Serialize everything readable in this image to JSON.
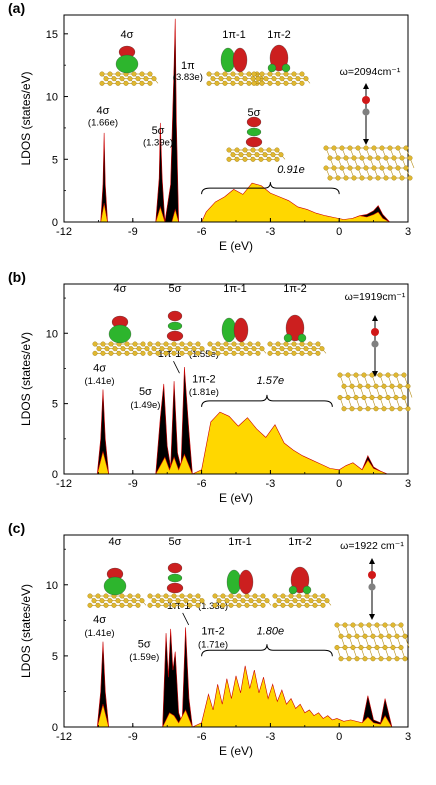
{
  "chart_data": [
    {
      "type": "area",
      "panel_label": "(a)",
      "xlabel": "E (eV)",
      "ylabel": "LDOS (states/eV)",
      "xlim": [
        -12,
        3
      ],
      "ylim": [
        0,
        16.5
      ],
      "xticks": [
        -12,
        -9,
        -6,
        -3,
        0,
        3
      ],
      "yticks": [
        0,
        5,
        10,
        15
      ],
      "grid": false,
      "series": [
        {
          "color": "#000000",
          "x": [
            -10.4,
            -10.3,
            -10.25,
            -10.2,
            -10.1,
            -8.0,
            -7.85,
            -7.8,
            -7.72,
            -7.6,
            -7.35,
            -7.2,
            -7.15,
            -7.1,
            -7.0,
            -6.0,
            -5.8,
            -5.4,
            -5.0,
            -4.6,
            -4.2,
            -3.8,
            -3.4,
            -3.0,
            -2.6,
            -2.2,
            -1.8,
            -1.4,
            -1.0,
            -0.6,
            -0.2,
            0.2,
            0.6,
            0.9,
            1.2,
            1.5,
            1.7,
            1.9,
            2.2
          ],
          "y": [
            0,
            3.0,
            7.1,
            3.0,
            0,
            0,
            3.5,
            7.9,
            3.5,
            0,
            3.0,
            12.5,
            16.2,
            8.0,
            0,
            0,
            0.2,
            0.35,
            0.4,
            0.45,
            0.5,
            0.45,
            0.4,
            0.35,
            0.3,
            0.3,
            0.35,
            0.3,
            0.25,
            0.2,
            0.15,
            0.1,
            0.3,
            0.5,
            0.6,
            0.9,
            1.3,
            0.6,
            0
          ]
        },
        {
          "color": "#ffd700",
          "x": [
            -10.4,
            -10.25,
            -10.1,
            -8.0,
            -7.8,
            -7.6,
            -7.3,
            -7.15,
            -7.0,
            -6.0,
            -5.8,
            -5.4,
            -5.0,
            -4.6,
            -4.2,
            -3.8,
            -3.4,
            -3.0,
            -2.6,
            -2.2,
            -1.8,
            -1.4,
            -1.0,
            -0.6,
            -0.2,
            0.2,
            0.6,
            0.9,
            1.2,
            1.5,
            1.7,
            1.9,
            2.2
          ],
          "y": [
            0,
            1.5,
            0,
            0,
            1.2,
            0,
            0,
            1.0,
            0,
            0,
            0.8,
            1.6,
            2.0,
            2.6,
            2.2,
            3.1,
            2.9,
            2.3,
            2.0,
            1.7,
            1.2,
            1.0,
            0.7,
            0.5,
            0.35,
            0.2,
            0.3,
            0.5,
            0.4,
            0.6,
            0.8,
            0.3,
            0
          ]
        }
      ],
      "annotations": [
        {
          "text": "4σ",
          "x": -10.3,
          "y": 8.6
        },
        {
          "text": "(1.66e)",
          "x": -10.3,
          "y": 7.7
        },
        {
          "text": "5σ",
          "x": -7.9,
          "y": 7.0
        },
        {
          "text": "(1.39e)",
          "x": -7.9,
          "y": 6.1
        },
        {
          "text": "1π",
          "x": -6.6,
          "y": 12.2
        },
        {
          "text": "(3.83e)",
          "x": -6.6,
          "y": 11.3
        },
        {
          "text": "0.91e",
          "x": -2.1,
          "y": 3.9
        }
      ],
      "orbital_labels": [
        "4σ",
        "1π-1",
        "1π-2",
        "5σ"
      ],
      "frequency": "ω=2094cm⁻¹",
      "brace": [
        -6.0,
        0.0,
        2.7
      ]
    },
    {
      "type": "area",
      "panel_label": "(b)",
      "xlabel": "E (eV)",
      "ylabel": "LDOS (states/eV)",
      "xlim": [
        -12,
        3
      ],
      "ylim": [
        0,
        13.5
      ],
      "xticks": [
        -12,
        -9,
        -6,
        -3,
        0,
        3
      ],
      "yticks": [
        0,
        5,
        10
      ],
      "grid": false,
      "series": [
        {
          "color": "#000000",
          "x": [
            -10.55,
            -10.4,
            -10.3,
            -10.2,
            -10.05,
            -8.0,
            -7.8,
            -7.65,
            -7.5,
            -7.35,
            -7.2,
            -7.05,
            -6.9,
            -6.75,
            -6.55,
            -6.4,
            -6.0,
            -5.5,
            -5.0,
            -4.5,
            -4.0,
            -3.5,
            -3.0,
            -2.5,
            -2.0,
            -1.5,
            -1.0,
            -0.5,
            0,
            0.3,
            0.6,
            1.0,
            1.25,
            1.5,
            1.8,
            2.1
          ],
          "y": [
            0,
            2.5,
            6.0,
            2.5,
            0,
            0,
            4.0,
            6.4,
            2.0,
            0.5,
            6.6,
            1.5,
            0.5,
            7.6,
            3.0,
            0,
            0.1,
            0.5,
            0.6,
            0.7,
            0.5,
            0.6,
            0.5,
            0.4,
            0.3,
            0.3,
            0.2,
            0.15,
            0.15,
            0.4,
            0.6,
            0.3,
            1.3,
            0.5,
            0.2,
            0
          ]
        },
        {
          "color": "#ffd700",
          "x": [
            -10.55,
            -10.3,
            -10.05,
            -8.0,
            -7.6,
            -7.4,
            -7.2,
            -7.0,
            -6.75,
            -6.4,
            -6.0,
            -5.6,
            -5.2,
            -4.8,
            -4.4,
            -4.0,
            -3.6,
            -3.2,
            -2.8,
            -2.4,
            -2.0,
            -1.6,
            -1.2,
            -0.8,
            -0.4,
            0,
            0.3,
            0.6,
            1.0,
            1.25,
            1.5,
            1.8,
            2.1
          ],
          "y": [
            0,
            1.6,
            0,
            0,
            1.2,
            0.3,
            1.2,
            0.3,
            1.4,
            0,
            0.3,
            3.7,
            4.4,
            4.1,
            3.4,
            4.0,
            3.2,
            2.6,
            3.5,
            2.2,
            1.7,
            1.3,
            1.0,
            0.7,
            0.4,
            0.3,
            0.6,
            0.8,
            0.3,
            1.0,
            0.4,
            0.2,
            0
          ]
        }
      ],
      "annotations": [
        {
          "text": "4σ",
          "x": -10.45,
          "y": 7.3
        },
        {
          "text": "(1.41e)",
          "x": -10.45,
          "y": 6.4
        },
        {
          "text": "5σ",
          "x": -8.45,
          "y": 5.6
        },
        {
          "text": "(1.49e)",
          "x": -8.45,
          "y": 4.7
        },
        {
          "text": "1π-1",
          "x": -7.4,
          "y": 8.3
        },
        {
          "text": "(1.55e)",
          "x": -5.9,
          "y": 8.3
        },
        {
          "text": "1π-2",
          "x": -5.9,
          "y": 6.5
        },
        {
          "text": "(1.81e)",
          "x": -5.9,
          "y": 5.6
        },
        {
          "text": "1.57e",
          "x": -3.0,
          "y": 6.4
        }
      ],
      "orbital_labels": [
        "4σ",
        "5σ",
        "1π-1",
        "1π-2"
      ],
      "frequency": "ω=1919cm⁻¹",
      "brace": [
        -6.0,
        -0.3,
        5.2
      ]
    },
    {
      "type": "area",
      "panel_label": "(c)",
      "xlabel": "E (eV)",
      "ylabel": "LDOS (states/eV)",
      "xlim": [
        -12,
        3
      ],
      "ylim": [
        0,
        13.5
      ],
      "xticks": [
        -12,
        -9,
        -6,
        -3,
        0,
        3
      ],
      "yticks": [
        0,
        5,
        10
      ],
      "grid": false,
      "series": [
        {
          "color": "#000000",
          "x": [
            -10.55,
            -10.4,
            -10.3,
            -10.2,
            -10.05,
            -7.7,
            -7.55,
            -7.45,
            -7.35,
            -7.25,
            -7.15,
            -7.0,
            -6.85,
            -6.7,
            -6.55,
            -6.4,
            -6.0,
            -5.5,
            -5.0,
            -4.5,
            -4.0,
            -3.5,
            -3.0,
            -2.5,
            -2.0,
            -1.5,
            -1.0,
            -0.5,
            0,
            0.5,
            1.0,
            1.25,
            1.5,
            1.8,
            2.0,
            2.3
          ],
          "y": [
            0,
            2.5,
            6.0,
            2.5,
            0,
            0,
            6.6,
            3.5,
            6.9,
            4.0,
            5.3,
            1.0,
            0.3,
            7.0,
            2.0,
            0,
            0.1,
            0.4,
            0.6,
            0.7,
            0.6,
            0.7,
            0.5,
            0.4,
            0.3,
            0.3,
            0.2,
            0.1,
            0.1,
            0.3,
            0.2,
            2.2,
            0.5,
            0.3,
            2.0,
            0
          ]
        },
        {
          "color": "#ffd700",
          "x": [
            -10.55,
            -10.3,
            -10.05,
            -7.7,
            -7.4,
            -7.2,
            -7.0,
            -6.7,
            -6.4,
            -6.0,
            -5.7,
            -5.5,
            -5.3,
            -5.1,
            -4.9,
            -4.7,
            -4.5,
            -4.3,
            -4.1,
            -3.9,
            -3.7,
            -3.5,
            -3.3,
            -3.1,
            -2.9,
            -2.7,
            -2.5,
            -2.3,
            -2.1,
            -1.9,
            -1.7,
            -1.5,
            -1.3,
            -1.1,
            -0.9,
            -0.7,
            -0.5,
            -0.3,
            -0.1,
            0.2,
            0.5,
            1.0,
            1.25,
            1.5,
            1.8,
            2.0,
            2.3
          ],
          "y": [
            0,
            1.6,
            0,
            0,
            1.0,
            0.8,
            0.3,
            1.2,
            0,
            0.3,
            2.3,
            1.2,
            3.0,
            1.6,
            3.4,
            2.0,
            3.6,
            2.4,
            4.3,
            2.7,
            4.0,
            2.4,
            3.5,
            2.0,
            3.0,
            1.8,
            2.6,
            1.6,
            2.0,
            1.3,
            1.6,
            1.0,
            1.2,
            0.8,
            1.0,
            0.6,
            0.8,
            0.5,
            0.6,
            0.4,
            0.5,
            0.3,
            0.7,
            0.3,
            0.2,
            0.8,
            0
          ]
        }
      ],
      "annotations": [
        {
          "text": "4σ",
          "x": -10.45,
          "y": 7.3
        },
        {
          "text": "(1.41e)",
          "x": -10.45,
          "y": 6.4
        },
        {
          "text": "5σ",
          "x": -8.5,
          "y": 5.6
        },
        {
          "text": "(1.59e)",
          "x": -8.5,
          "y": 4.7
        },
        {
          "text": "1π-1",
          "x": -7.0,
          "y": 8.3
        },
        {
          "text": "(1.33e)",
          "x": -5.5,
          "y": 8.3
        },
        {
          "text": "1π-2",
          "x": -5.5,
          "y": 6.5
        },
        {
          "text": "(1.71e)",
          "x": -5.5,
          "y": 5.6
        },
        {
          "text": "1.80e",
          "x": -3.0,
          "y": 6.5
        }
      ],
      "orbital_labels": [
        "4σ",
        "5σ",
        "1π-1",
        "1π-2"
      ],
      "frequency": "ω=1922 cm⁻¹",
      "brace": [
        -6.0,
        -0.3,
        5.4
      ]
    }
  ],
  "colors": {
    "fill_total": "#000000",
    "fill_partial": "#ffd700",
    "outline": "#cc0000",
    "lobe_red": "#cc1f1f",
    "lobe_green": "#2db52d",
    "surface": "#e0b830"
  }
}
